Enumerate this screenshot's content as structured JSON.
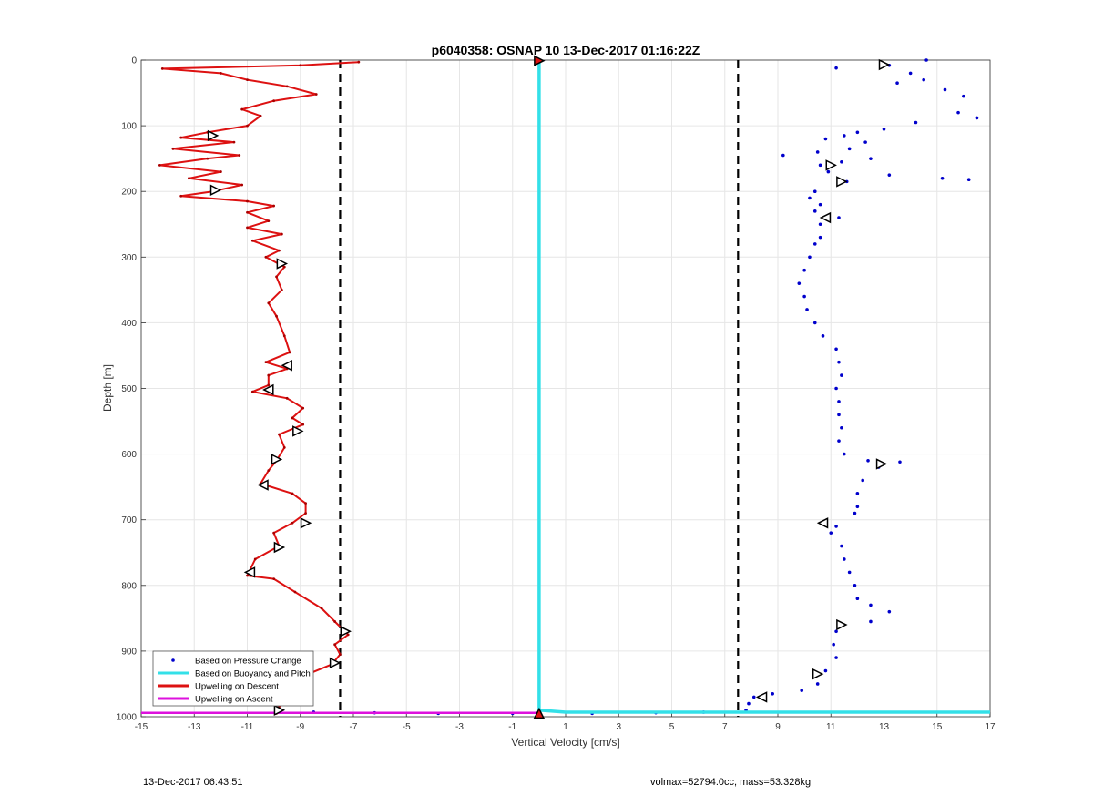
{
  "footer": {
    "left": "13-Dec-2017 06:43:51",
    "right": "volmax=52794.0cc, mass=53.328kg"
  },
  "chart_data": {
    "type": "line",
    "title": "p6040358: OSNAP 10 13-Dec-2017 01:16:22Z",
    "xlabel": "Vertical Velocity [cm/s]",
    "ylabel": "Depth [m]",
    "xlim": [
      -15,
      17
    ],
    "ylim": [
      0,
      1000
    ],
    "y_reversed": true,
    "xticks": [
      -15,
      -13,
      -11,
      -9,
      -7,
      -5,
      -3,
      -1,
      1,
      3,
      5,
      7,
      9,
      11,
      13,
      15,
      17
    ],
    "yticks": [
      0,
      100,
      200,
      300,
      400,
      500,
      600,
      700,
      800,
      900,
      1000
    ],
    "grid": true,
    "legend_position": "bottom-left",
    "legend": [
      {
        "label": "Based on Pressure Change",
        "color": "#0000cc",
        "style": "dot"
      },
      {
        "label": "Based on Buoyancy and Pitch",
        "color": "#33e0e8",
        "style": "line"
      },
      {
        "label": "Upwelling on Descent",
        "color": "#dd1111",
        "style": "line"
      },
      {
        "label": "Upwelling on Ascent",
        "color": "#dd11dd",
        "style": "line"
      }
    ],
    "reference_lines_x": [
      -7.5,
      7.5
    ],
    "series": [
      {
        "name": "Upwelling on Descent",
        "color": "#dd1111",
        "points": [
          [
            -6.8,
            3
          ],
          [
            -9,
            8
          ],
          [
            -14.2,
            13
          ],
          [
            -12,
            20
          ],
          [
            -11,
            30
          ],
          [
            -9.5,
            40
          ],
          [
            -8.4,
            52
          ],
          [
            -10,
            62
          ],
          [
            -11.2,
            75
          ],
          [
            -10.5,
            85
          ],
          [
            -11,
            100
          ],
          [
            -12.5,
            110
          ],
          [
            -13.5,
            118
          ],
          [
            -11.5,
            125
          ],
          [
            -13.8,
            135
          ],
          [
            -11.3,
            145
          ],
          [
            -12.5,
            150
          ],
          [
            -14.3,
            160
          ],
          [
            -12,
            170
          ],
          [
            -13.2,
            180
          ],
          [
            -11.2,
            190
          ],
          [
            -12.3,
            200
          ],
          [
            -13.5,
            207
          ],
          [
            -11,
            215
          ],
          [
            -10,
            222
          ],
          [
            -11,
            232
          ],
          [
            -10.2,
            245
          ],
          [
            -11,
            255
          ],
          [
            -9.7,
            265
          ],
          [
            -10.8,
            275
          ],
          [
            -9.8,
            290
          ],
          [
            -10.3,
            300
          ],
          [
            -9.6,
            315
          ],
          [
            -9.9,
            330
          ],
          [
            -9.7,
            350
          ],
          [
            -10.2,
            370
          ],
          [
            -9.9,
            390
          ],
          [
            -9.6,
            420
          ],
          [
            -9.4,
            445
          ],
          [
            -10.3,
            460
          ],
          [
            -9.5,
            470
          ],
          [
            -10.2,
            480
          ],
          [
            -10.2,
            495
          ],
          [
            -10.8,
            505
          ],
          [
            -9.5,
            515
          ],
          [
            -8.9,
            530
          ],
          [
            -9.3,
            545
          ],
          [
            -8.9,
            555
          ],
          [
            -9.8,
            570
          ],
          [
            -9.6,
            590
          ],
          [
            -9.9,
            610
          ],
          [
            -10.2,
            625
          ],
          [
            -10.5,
            645
          ],
          [
            -9.3,
            660
          ],
          [
            -8.8,
            675
          ],
          [
            -8.8,
            690
          ],
          [
            -9.3,
            705
          ],
          [
            -10,
            720
          ],
          [
            -9.8,
            740
          ],
          [
            -10.7,
            760
          ],
          [
            -11,
            785
          ],
          [
            -10,
            790
          ],
          [
            -9.2,
            810
          ],
          [
            -8.2,
            835
          ],
          [
            -7.7,
            855
          ],
          [
            -7.2,
            875
          ],
          [
            -7.7,
            890
          ],
          [
            -7.5,
            905
          ],
          [
            -7.8,
            920
          ],
          [
            -8.7,
            935
          ],
          [
            -9.3,
            950
          ],
          [
            -9.6,
            970
          ],
          [
            -9.8,
            985
          ],
          [
            -9.9,
            995
          ]
        ]
      },
      {
        "name": "Based on Pressure Change",
        "color": "#0000cc",
        "points": [
          [
            14.6,
            0
          ],
          [
            11.2,
            12
          ],
          [
            13.2,
            8
          ],
          [
            14,
            20
          ],
          [
            14.5,
            30
          ],
          [
            15.3,
            45
          ],
          [
            13.5,
            35
          ],
          [
            16,
            55
          ],
          [
            15.8,
            80
          ],
          [
            16.5,
            88
          ],
          [
            14.2,
            95
          ],
          [
            13,
            105
          ],
          [
            12,
            110
          ],
          [
            11.5,
            115
          ],
          [
            10.8,
            120
          ],
          [
            12.3,
            125
          ],
          [
            11.7,
            135
          ],
          [
            10.5,
            140
          ],
          [
            9.2,
            145
          ],
          [
            12.5,
            150
          ],
          [
            11.4,
            155
          ],
          [
            10.6,
            160
          ],
          [
            10.9,
            170
          ],
          [
            13.2,
            175
          ],
          [
            15.2,
            180
          ],
          [
            16.2,
            182
          ],
          [
            11.6,
            185
          ],
          [
            10.4,
            200
          ],
          [
            10.2,
            210
          ],
          [
            10.6,
            220
          ],
          [
            10.4,
            230
          ],
          [
            11.3,
            240
          ],
          [
            10.6,
            250
          ],
          [
            10.6,
            270
          ],
          [
            10.4,
            280
          ],
          [
            10.2,
            300
          ],
          [
            10,
            320
          ],
          [
            9.8,
            340
          ],
          [
            10,
            360
          ],
          [
            10.1,
            380
          ],
          [
            10.4,
            400
          ],
          [
            10.7,
            420
          ],
          [
            11.2,
            440
          ],
          [
            11.3,
            460
          ],
          [
            11.4,
            480
          ],
          [
            11.2,
            500
          ],
          [
            11.3,
            520
          ],
          [
            11.3,
            540
          ],
          [
            11.4,
            560
          ],
          [
            11.3,
            580
          ],
          [
            11.5,
            600
          ],
          [
            12.4,
            610
          ],
          [
            13.6,
            612
          ],
          [
            12.8,
            620
          ],
          [
            12.2,
            640
          ],
          [
            12,
            660
          ],
          [
            12,
            680
          ],
          [
            11.9,
            690
          ],
          [
            11.2,
            710
          ],
          [
            11,
            720
          ],
          [
            11.4,
            740
          ],
          [
            11.5,
            760
          ],
          [
            11.7,
            780
          ],
          [
            11.9,
            800
          ],
          [
            12,
            820
          ],
          [
            12.5,
            830
          ],
          [
            13.2,
            840
          ],
          [
            12.5,
            855
          ],
          [
            11.2,
            870
          ],
          [
            11.1,
            890
          ],
          [
            11.2,
            910
          ],
          [
            10.8,
            930
          ],
          [
            10.5,
            950
          ],
          [
            9.9,
            960
          ],
          [
            8.8,
            965
          ],
          [
            8.1,
            970
          ],
          [
            7.9,
            980
          ],
          [
            7.8,
            990
          ],
          [
            6.2,
            993
          ],
          [
            4.4,
            994
          ],
          [
            2,
            995
          ],
          [
            -1,
            995
          ],
          [
            -3.8,
            995
          ],
          [
            -6.2,
            994
          ],
          [
            -8.5,
            993
          ]
        ]
      },
      {
        "name": "Based on Buoyancy and Pitch",
        "color": "#33e0e8",
        "points": [
          [
            0,
            0
          ],
          [
            0,
            990
          ],
          [
            1,
            993
          ],
          [
            17,
            993
          ]
        ]
      },
      {
        "name": "Upwelling on Ascent",
        "color": "#dd11dd",
        "points": [
          [
            -15,
            994
          ],
          [
            0,
            994
          ]
        ]
      }
    ],
    "markers": [
      {
        "x": 0,
        "y": 1,
        "dir": "right",
        "color": "#dd1111"
      },
      {
        "x": 0,
        "y": 995,
        "dir": "up",
        "color": "#dd1111"
      },
      {
        "x": -12.3,
        "y": 115,
        "dir": "right"
      },
      {
        "x": -12.2,
        "y": 198,
        "dir": "right"
      },
      {
        "x": -9.7,
        "y": 310,
        "dir": "right"
      },
      {
        "x": -9.5,
        "y": 465,
        "dir": "left"
      },
      {
        "x": -10.2,
        "y": 502,
        "dir": "left"
      },
      {
        "x": -9.1,
        "y": 565,
        "dir": "right"
      },
      {
        "x": -9.9,
        "y": 608,
        "dir": "right"
      },
      {
        "x": -10.4,
        "y": 647,
        "dir": "left"
      },
      {
        "x": -8.8,
        "y": 705,
        "dir": "right"
      },
      {
        "x": -9.8,
        "y": 742,
        "dir": "right"
      },
      {
        "x": -10.9,
        "y": 780,
        "dir": "left"
      },
      {
        "x": -7.3,
        "y": 870,
        "dir": "right"
      },
      {
        "x": -7.7,
        "y": 918,
        "dir": "right"
      },
      {
        "x": -9.2,
        "y": 952,
        "dir": "right"
      },
      {
        "x": -9.8,
        "y": 990,
        "dir": "right"
      },
      {
        "x": 13,
        "y": 7,
        "dir": "right"
      },
      {
        "x": 11,
        "y": 160,
        "dir": "right"
      },
      {
        "x": 11.4,
        "y": 185,
        "dir": "right"
      },
      {
        "x": 10.8,
        "y": 240,
        "dir": "left"
      },
      {
        "x": 12.9,
        "y": 615,
        "dir": "right"
      },
      {
        "x": 10.7,
        "y": 705,
        "dir": "left"
      },
      {
        "x": 11.4,
        "y": 860,
        "dir": "right"
      },
      {
        "x": 10.5,
        "y": 935,
        "dir": "right"
      },
      {
        "x": 8.4,
        "y": 970,
        "dir": "left"
      }
    ]
  }
}
